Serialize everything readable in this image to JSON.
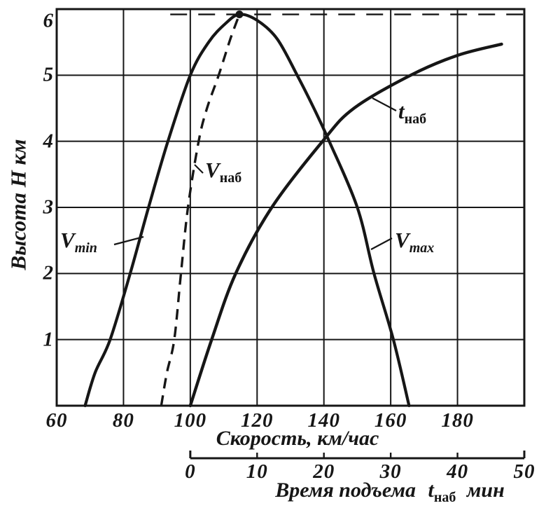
{
  "figure": {
    "background": "#ffffff",
    "ink": "#161616"
  },
  "chart_data": {
    "type": "line",
    "title": "",
    "y_axis": {
      "label": "Высота H км",
      "word": "Высота",
      "sym": "H",
      "unit": "км",
      "range": [
        0,
        6
      ],
      "ticks": [
        1,
        2,
        3,
        4,
        5,
        6
      ],
      "gridlines_at": [
        1,
        2,
        3,
        4,
        5
      ]
    },
    "x_axes": [
      {
        "id": "speed",
        "label": "Скорость, км/час",
        "range": [
          60,
          200
        ],
        "ticks": [
          60,
          80,
          100,
          120,
          140,
          160,
          180
        ],
        "gridlines_at": [
          80,
          100,
          120,
          140,
          160,
          180
        ]
      },
      {
        "id": "time",
        "label_prefix": "Время подъема",
        "label_sym": "t",
        "label_sub": "наб",
        "label_unit": "мин",
        "range": [
          0,
          50
        ],
        "ticks": [
          0,
          10,
          20,
          30,
          40,
          50
        ],
        "tick_marks_at": [
          10,
          20,
          30,
          40
        ]
      }
    ],
    "series": [
      {
        "id": "vmin",
        "name": "Vmin",
        "x_axis": "speed",
        "style": "solid",
        "points": [
          [
            68.5,
            0
          ],
          [
            71.5,
            0.5
          ],
          [
            76,
            1
          ],
          [
            82,
            2
          ],
          [
            87.5,
            3
          ],
          [
            93.3,
            4
          ],
          [
            100,
            5
          ],
          [
            105.5,
            5.5
          ],
          [
            110.5,
            5.78
          ],
          [
            114.7,
            5.92
          ]
        ]
      },
      {
        "id": "vmax",
        "name": "Vmax",
        "x_axis": "speed",
        "style": "solid",
        "points": [
          [
            114.7,
            5.92
          ],
          [
            120,
            5.83
          ],
          [
            126,
            5.55
          ],
          [
            132,
            5
          ],
          [
            137,
            4.5
          ],
          [
            141.6,
            4
          ],
          [
            150,
            3
          ],
          [
            155,
            2
          ],
          [
            160.8,
            1
          ],
          [
            165.5,
            0
          ]
        ]
      },
      {
        "id": "vnab",
        "name": "Vнаб",
        "x_axis": "speed",
        "style": "dashed",
        "points": [
          [
            91.3,
            0
          ],
          [
            93,
            0.5
          ],
          [
            95.2,
            1
          ],
          [
            97.2,
            2
          ],
          [
            99.3,
            3
          ],
          [
            102.5,
            4
          ],
          [
            105,
            4.5
          ],
          [
            108.5,
            5
          ],
          [
            112,
            5.55
          ],
          [
            114.7,
            5.92
          ]
        ]
      },
      {
        "id": "tnab",
        "name": "tнаб",
        "x_axis": "time",
        "style": "solid",
        "points": [
          [
            0,
            0
          ],
          [
            3.2,
            1
          ],
          [
            6.8,
            2
          ],
          [
            12.2,
            3
          ],
          [
            19.8,
            4
          ],
          [
            24.5,
            4.5
          ],
          [
            33,
            5
          ],
          [
            40,
            5.3
          ],
          [
            46.6,
            5.47
          ]
        ]
      }
    ],
    "ceiling_line": {
      "altitude_km": 5.92,
      "style": "dashed",
      "from_speed": 94,
      "to_speed": 200
    },
    "peak_marker": {
      "speed": 114.7,
      "altitude_km": 5.92
    }
  },
  "curve_labels": {
    "vmin": {
      "base": "V",
      "sub": "min"
    },
    "vnab": {
      "base": "V",
      "sub": "наб"
    },
    "tnab": {
      "base": "t",
      "sub": "наб"
    },
    "vmax": {
      "base": "V",
      "sub": "max"
    }
  }
}
